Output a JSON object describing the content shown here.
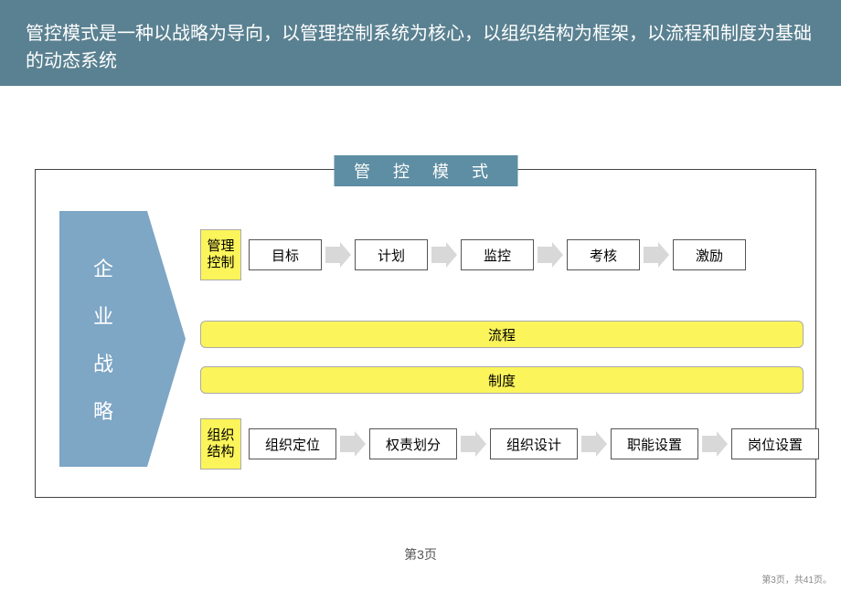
{
  "colors": {
    "header_bg": "#5a8191",
    "title_bg": "#5e8ea3",
    "strategy_bg": "#7ea6c5",
    "yellow": "#fbf45a",
    "arrow": "#d8d8d8",
    "border": "#555555"
  },
  "header": {
    "text": "管控模式是一种以战略为导向，以管理控制系统为核心，以组织结构为框架，以流程和制度为基础的动态系统"
  },
  "frame_title": "管 控 模 式",
  "strategy": {
    "c1": "企",
    "c2": "业",
    "c3": "战",
    "c4": "略"
  },
  "row1": {
    "label_l1": "管理",
    "label_l2": "控制",
    "steps": [
      "目标",
      "计划",
      "监控",
      "考核",
      "激励"
    ]
  },
  "bar2": "流程",
  "bar3": "制度",
  "row4": {
    "label_l1": "组织",
    "label_l2": "结构",
    "steps": [
      "组织定位",
      "权责划分",
      "组织设计",
      "职能设置",
      "岗位设置"
    ]
  },
  "footer": {
    "page": "第3页",
    "small": "第3页，共41页。"
  }
}
